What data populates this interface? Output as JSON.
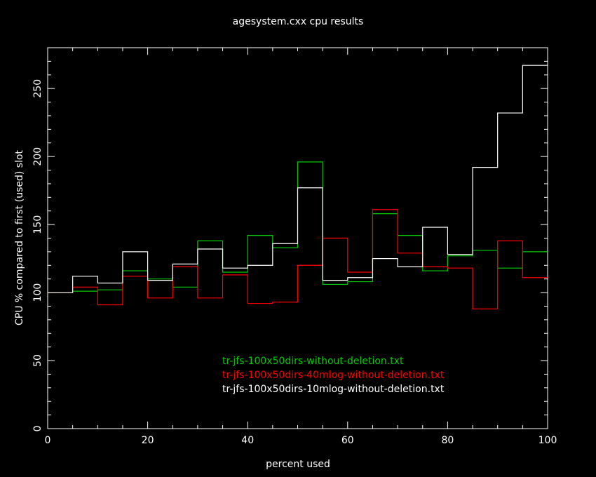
{
  "chart_data": {
    "type": "line",
    "step": true,
    "title": "agesystem.cxx cpu results",
    "xlabel": "percent used",
    "ylabel": "CPU % compared to first (used) slot",
    "xlim": [
      0,
      100
    ],
    "ylim": [
      0,
      280
    ],
    "xticks": [
      0,
      20,
      40,
      60,
      80,
      100
    ],
    "yticks": [
      0,
      50,
      100,
      150,
      200,
      250
    ],
    "grid": false,
    "legend_position": "bottom-center",
    "bin_edges": [
      0,
      5,
      10,
      15,
      20,
      25,
      30,
      35,
      40,
      45,
      50,
      55,
      60,
      65,
      70,
      75,
      80,
      85,
      90,
      95,
      100
    ],
    "series": [
      {
        "name": "tr-jfs-100x50dirs-without-deletion.txt",
        "color": "#00cc00",
        "values": [
          100,
          101,
          102,
          116,
          110,
          104,
          138,
          115,
          142,
          133,
          196,
          106,
          108,
          158,
          142,
          116,
          127,
          131,
          118,
          130
        ]
      },
      {
        "name": "tr-jfs-100x50dirs-40mlog-without-deletion.txt",
        "color": "#ff0000",
        "values": [
          100,
          104,
          91,
          112,
          96,
          119,
          96,
          113,
          92,
          93,
          120,
          140,
          115,
          161,
          129,
          119,
          118,
          88,
          138,
          111
        ]
      },
      {
        "name": "tr-jfs-100x50dirs-10mlog-without-deletion.txt",
        "color": "#ffffff",
        "values": [
          100,
          112,
          107,
          130,
          109,
          121,
          132,
          118,
          120,
          136,
          177,
          109,
          111,
          125,
          119,
          148,
          128,
          192,
          232,
          267
        ]
      }
    ]
  }
}
